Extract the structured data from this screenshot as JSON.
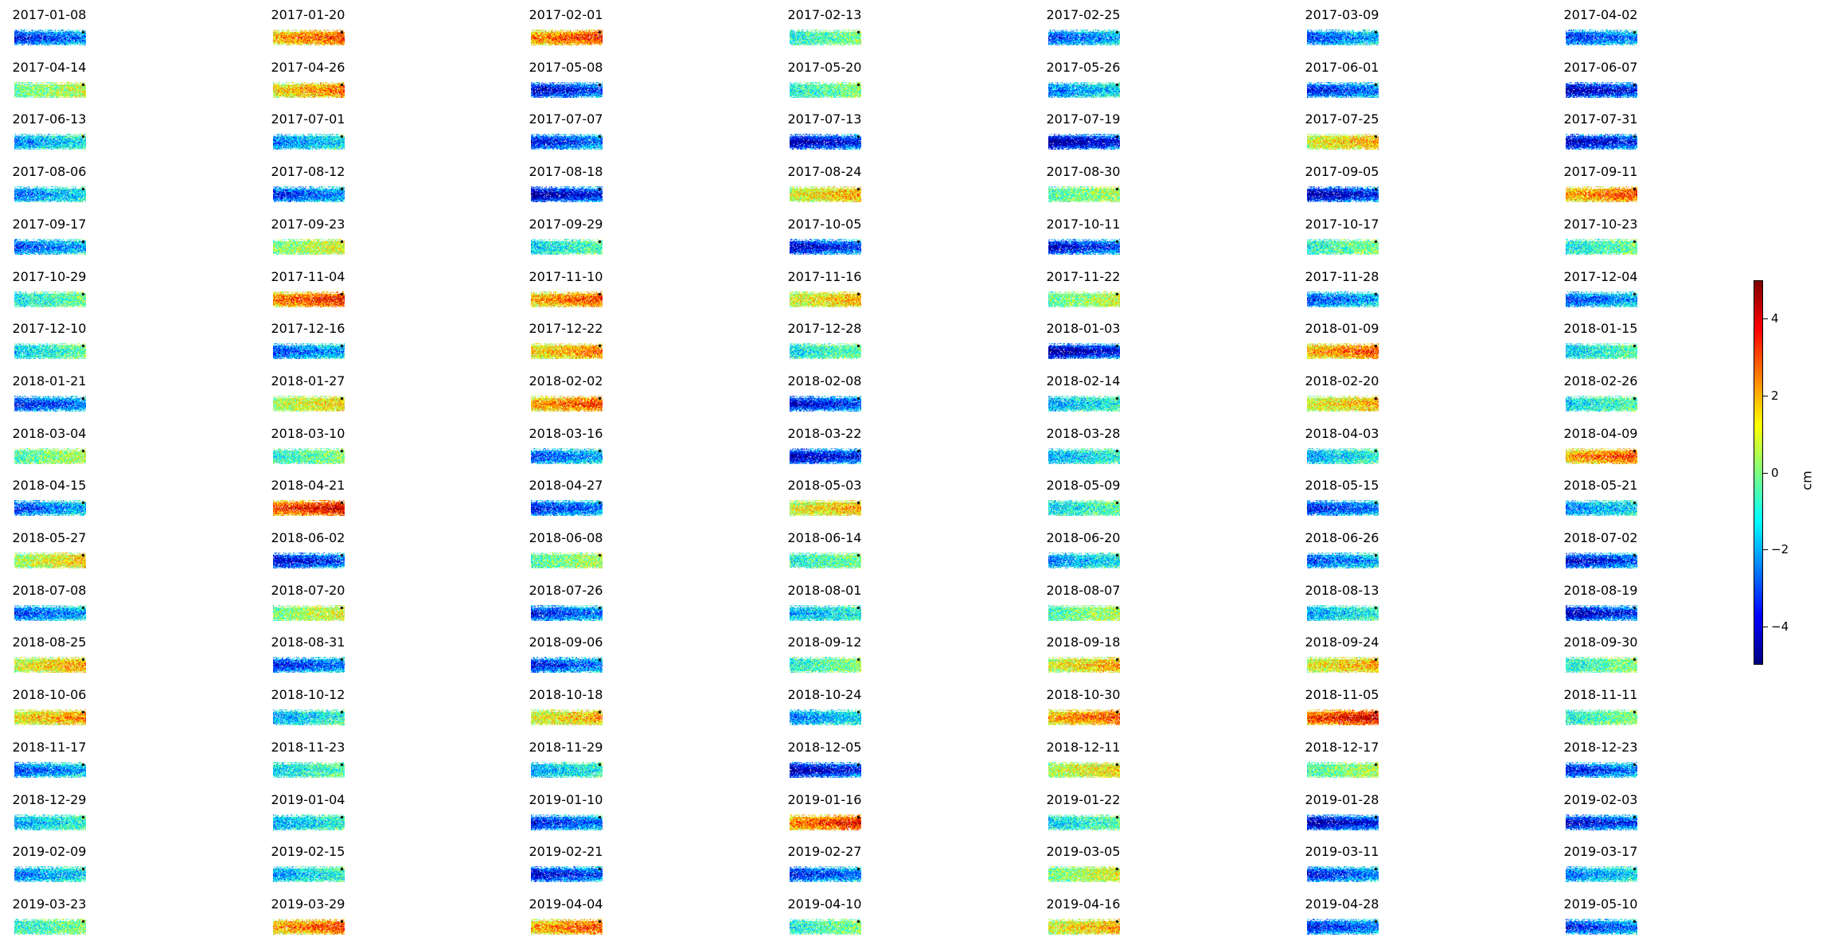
{
  "chart_data": {
    "type": "heatmap",
    "layout": {
      "rows": 18,
      "cols": 7
    },
    "dates": [
      "2017-01-08",
      "2017-01-20",
      "2017-02-01",
      "2017-02-13",
      "2017-02-25",
      "2017-03-09",
      "2017-04-02",
      "2017-04-14",
      "2017-04-26",
      "2017-05-08",
      "2017-05-20",
      "2017-05-26",
      "2017-06-01",
      "2017-06-07",
      "2017-06-13",
      "2017-07-01",
      "2017-07-07",
      "2017-07-13",
      "2017-07-19",
      "2017-07-25",
      "2017-07-31",
      "2017-08-06",
      "2017-08-12",
      "2017-08-18",
      "2017-08-24",
      "2017-08-30",
      "2017-09-05",
      "2017-09-11",
      "2017-09-17",
      "2017-09-23",
      "2017-09-29",
      "2017-10-05",
      "2017-10-11",
      "2017-10-17",
      "2017-10-23",
      "2017-10-29",
      "2017-11-04",
      "2017-11-10",
      "2017-11-16",
      "2017-11-22",
      "2017-11-28",
      "2017-12-04",
      "2017-12-10",
      "2017-12-16",
      "2017-12-22",
      "2017-12-28",
      "2018-01-03",
      "2018-01-09",
      "2018-01-15",
      "2018-01-21",
      "2018-01-27",
      "2018-02-02",
      "2018-02-08",
      "2018-02-14",
      "2018-02-20",
      "2018-02-26",
      "2018-03-04",
      "2018-03-10",
      "2018-03-16",
      "2018-03-22",
      "2018-03-28",
      "2018-04-03",
      "2018-04-09",
      "2018-04-15",
      "2018-04-21",
      "2018-04-27",
      "2018-05-03",
      "2018-05-09",
      "2018-05-15",
      "2018-05-21",
      "2018-05-27",
      "2018-06-02",
      "2018-06-08",
      "2018-06-14",
      "2018-06-20",
      "2018-06-26",
      "2018-07-02",
      "2018-07-08",
      "2018-07-20",
      "2018-07-26",
      "2018-08-01",
      "2018-08-07",
      "2018-08-13",
      "2018-08-19",
      "2018-08-25",
      "2018-08-31",
      "2018-09-06",
      "2018-09-12",
      "2018-09-18",
      "2018-09-24",
      "2018-09-30",
      "2018-10-06",
      "2018-10-12",
      "2018-10-18",
      "2018-10-24",
      "2018-10-30",
      "2018-11-05",
      "2018-11-11",
      "2018-11-17",
      "2018-11-23",
      "2018-11-29",
      "2018-12-05",
      "2018-12-11",
      "2018-12-17",
      "2018-12-23",
      "2018-12-29",
      "2019-01-04",
      "2019-01-10",
      "2019-01-16",
      "2019-01-22",
      "2019-01-28",
      "2019-02-03",
      "2019-02-09",
      "2019-02-15",
      "2019-02-21",
      "2019-02-27",
      "2019-03-05",
      "2019-03-11",
      "2019-03-17",
      "2019-03-23",
      "2019-03-29",
      "2019-04-04",
      "2019-04-10",
      "2019-04-16",
      "2019-04-28",
      "2019-05-10"
    ],
    "mean_values_cm": [
      -3.0,
      2.5,
      2.8,
      -0.5,
      -2.5,
      -2.5,
      -2.8,
      0.3,
      2.0,
      -3.5,
      -0.5,
      -2.0,
      -3.0,
      -4.0,
      -1.8,
      -2.0,
      -3.2,
      -4.0,
      -4.2,
      1.5,
      -3.8,
      -2.0,
      -2.8,
      -4.0,
      1.5,
      0.0,
      -4.0,
      2.5,
      -2.5,
      0.5,
      -1.0,
      -3.5,
      -3.5,
      -0.5,
      -0.8,
      -0.8,
      3.0,
      2.5,
      1.5,
      0.2,
      -2.5,
      -2.5,
      -1.0,
      -2.5,
      2.0,
      -0.8,
      -4.2,
      2.5,
      -1.0,
      -3.0,
      1.0,
      2.5,
      -3.5,
      -1.5,
      1.5,
      -1.0,
      0.0,
      -0.5,
      -2.5,
      -3.8,
      -1.5,
      -1.5,
      2.5,
      -2.5,
      3.5,
      -3.0,
      1.5,
      -1.0,
      -3.0,
      -2.0,
      1.0,
      -3.5,
      0.0,
      -0.5,
      -1.8,
      -2.5,
      -3.5,
      -2.5,
      0.5,
      -3.0,
      -1.5,
      0.0,
      -1.5,
      -3.8,
      1.5,
      -3.0,
      -3.0,
      -0.5,
      1.5,
      1.5,
      -0.5,
      1.8,
      -1.5,
      1.5,
      -2.0,
      2.5,
      3.5,
      -0.5,
      -2.5,
      -1.0,
      -1.5,
      -4.0,
      1.0,
      0.0,
      -3.0,
      -1.5,
      -1.5,
      -3.0,
      3.0,
      -1.0,
      -4.0,
      -3.5,
      -2.0,
      -1.5,
      -3.5,
      -3.0,
      0.5,
      -3.0,
      -2.0,
      -0.5,
      2.5,
      2.5,
      -0.5,
      1.5,
      -3.0,
      -3.0
    ],
    "colormap": "jet",
    "colorbar": {
      "vmin": -5,
      "vmax": 5,
      "ticks": [
        -4,
        -2,
        0,
        2,
        4
      ],
      "tick_labels": [
        "−4",
        "−2",
        "0",
        "2",
        "4"
      ],
      "label": "cm"
    }
  }
}
